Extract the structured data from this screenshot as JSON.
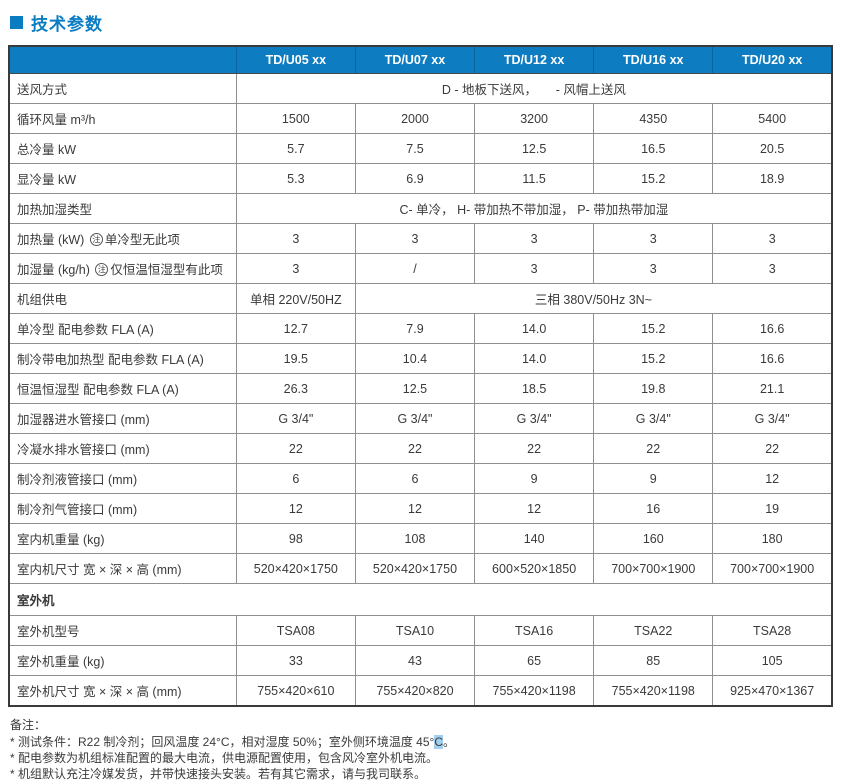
{
  "page": {
    "title": "技术参数"
  },
  "table": {
    "note_marker": "注",
    "columns": [
      "TD/U05 xx",
      "TD/U07 xx",
      "TD/U12 xx",
      "TD/U16 xx",
      "TD/U20 xx"
    ],
    "rows": [
      {
        "type": "span",
        "label": "送风方式",
        "value": "D - 地板下送风，　　- 风帽上送风"
      },
      {
        "type": "cells",
        "label": "循环风量 m³/h",
        "values": [
          "1500",
          "2000",
          "3200",
          "4350",
          "5400"
        ]
      },
      {
        "type": "cells",
        "label": "总冷量 kW",
        "values": [
          "5.7",
          "7.5",
          "12.5",
          "16.5",
          "20.5"
        ]
      },
      {
        "type": "cells",
        "label": "显冷量 kW",
        "values": [
          "5.3",
          "6.9",
          "11.5",
          "15.2",
          "18.9"
        ]
      },
      {
        "type": "span",
        "label": "加热加湿类型",
        "value": "C- 单冷， H- 带加热不带加湿， P- 带加热带加湿"
      },
      {
        "type": "cells",
        "label": "加热量 (kW) ㊟单冷型无此项",
        "values": [
          "3",
          "3",
          "3",
          "3",
          "3"
        ]
      },
      {
        "type": "cells",
        "label": "加湿量 (kg/h) ㊟仅恒温恒湿型有此项",
        "values": [
          "3",
          "/",
          "3",
          "3",
          "3"
        ]
      },
      {
        "type": "mixed",
        "label": "机组供电",
        "first": "单相 220V/50HZ",
        "rest": "三相 380V/50Hz 3N~"
      },
      {
        "type": "cells",
        "label": "单冷型 配电参数 FLA (A)",
        "values": [
          "12.7",
          "7.9",
          "14.0",
          "15.2",
          "16.6"
        ]
      },
      {
        "type": "cells",
        "label": "制冷带电加热型 配电参数 FLA (A)",
        "values": [
          "19.5",
          "10.4",
          "14.0",
          "15.2",
          "16.6"
        ]
      },
      {
        "type": "cells",
        "label": "恒温恒湿型 配电参数 FLA (A)",
        "values": [
          "26.3",
          "12.5",
          "18.5",
          "19.8",
          "21.1"
        ]
      },
      {
        "type": "cells",
        "label": "加湿器进水管接口 (mm)",
        "values": [
          "G 3/4\"",
          "G 3/4\"",
          "G 3/4\"",
          "G 3/4\"",
          "G 3/4\""
        ]
      },
      {
        "type": "cells",
        "label": "冷凝水排水管接口 (mm)",
        "values": [
          "22",
          "22",
          "22",
          "22",
          "22"
        ]
      },
      {
        "type": "cells",
        "label": "制冷剂液管接口 (mm)",
        "values": [
          "6",
          "6",
          "9",
          "9",
          "12"
        ]
      },
      {
        "type": "cells",
        "label": "制冷剂气管接口 (mm)",
        "values": [
          "12",
          "12",
          "12",
          "16",
          "19"
        ]
      },
      {
        "type": "cells",
        "label": "室内机重量 (kg)",
        "values": [
          "98",
          "108",
          "140",
          "160",
          "180"
        ]
      },
      {
        "type": "cells",
        "label": "室内机尺寸 宽 × 深 × 高 (mm)",
        "values": [
          "520×420×1750",
          "520×420×1750",
          "600×520×1850",
          "700×700×1900",
          "700×700×1900"
        ]
      },
      {
        "type": "section",
        "label": "室外机"
      },
      {
        "type": "cells",
        "label": "室外机型号",
        "values": [
          "TSA08",
          "TSA10",
          "TSA16",
          "TSA22",
          "TSA28"
        ]
      },
      {
        "type": "cells",
        "label": "室外机重量 (kg)",
        "values": [
          "33",
          "43",
          "65",
          "85",
          "105"
        ]
      },
      {
        "type": "cells",
        "label": "室外机尺寸 宽 × 深 × 高 (mm)",
        "values": [
          "755×420×610",
          "755×420×820",
          "755×420×1198",
          "755×420×1198",
          "925×470×1367"
        ]
      }
    ]
  },
  "notes": {
    "heading": "备注：",
    "note1_pre": "* 测试条件：R22 制冷剂；回风温度 24°C，相对湿度 50%；室外侧环境温度 45°",
    "note1_highlight": "C",
    "note1_post": "。",
    "note2": "* 配电参数为机组标准配置的最大电流，供电源配置使用，包含风冷室外机电流。",
    "note3": "* 机组默认充注冷媒发货，并带快速接头安装。若有其它需求，请与我司联系。"
  }
}
